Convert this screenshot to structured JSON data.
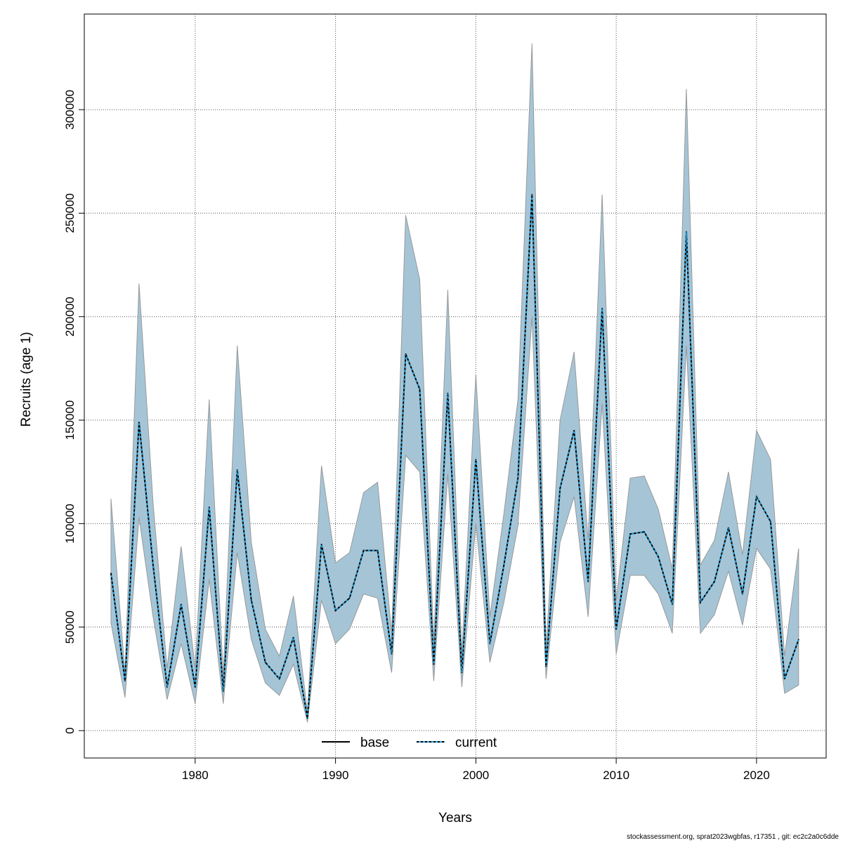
{
  "chart_data": {
    "type": "line",
    "title": "",
    "xlabel": "Years",
    "ylabel": "Recruits (age 1)",
    "xlim": [
      1972.1,
      2024.96
    ],
    "ylim": [
      -13240,
      346200
    ],
    "xticks": [
      1980,
      1990,
      2000,
      2010,
      2020
    ],
    "yticks": [
      0,
      50000,
      100000,
      150000,
      200000,
      250000,
      300000
    ],
    "grid": true,
    "legend": {
      "placement": "bottom-center",
      "entries": [
        "base",
        "current"
      ]
    },
    "x": [
      1974,
      1975,
      1976,
      1977,
      1978,
      1979,
      1980,
      1981,
      1982,
      1983,
      1984,
      1985,
      1986,
      1987,
      1988,
      1989,
      1990,
      1991,
      1992,
      1993,
      1994,
      1995,
      1996,
      1997,
      1998,
      1999,
      2000,
      2001,
      2002,
      2003,
      2004,
      2005,
      2006,
      2007,
      2008,
      2009,
      2010,
      2011,
      2012,
      2013,
      2014,
      2015,
      2016,
      2017,
      2018,
      2019,
      2020,
      2021,
      2022,
      2023
    ],
    "series": [
      {
        "name": "base",
        "color": "#000000",
        "values": [
          76000,
          24000,
          149000,
          80000,
          21000,
          61000,
          21000,
          108000,
          19000,
          126000,
          63000,
          33000,
          25000,
          45000,
          6000,
          90000,
          58000,
          64000,
          87000,
          87000,
          37000,
          182000,
          165000,
          32000,
          163000,
          28000,
          131000,
          42000,
          80000,
          122000,
          259000,
          31000,
          117000,
          145000,
          72000,
          204000,
          49000,
          95000,
          96000,
          84000,
          61000,
          241000,
          62000,
          72000,
          98000,
          66000,
          113000,
          101000,
          25000,
          44000
        ]
      },
      {
        "name": "current",
        "color": "#1f9bd7",
        "values": [
          76000,
          24000,
          149000,
          80000,
          21000,
          61000,
          21000,
          108000,
          19000,
          126000,
          63000,
          33000,
          25000,
          45000,
          6000,
          90000,
          58000,
          64000,
          87000,
          87000,
          37000,
          182000,
          165000,
          32000,
          163000,
          28000,
          131000,
          42000,
          80000,
          122000,
          259000,
          31000,
          117000,
          145000,
          72000,
          204000,
          49000,
          95000,
          96000,
          84000,
          61000,
          241000,
          62000,
          72000,
          98000,
          66000,
          113000,
          101000,
          25000,
          44000
        ]
      }
    ],
    "confidence_band": {
      "color": "#a5c5d6",
      "low": [
        52000,
        16000,
        103000,
        55000,
        15000,
        42000,
        13000,
        73000,
        13000,
        86000,
        44000,
        23000,
        17000,
        32000,
        4000,
        63000,
        42000,
        49000,
        66000,
        64000,
        28000,
        133000,
        125000,
        24000,
        124000,
        21000,
        100000,
        33000,
        62000,
        99000,
        200000,
        25000,
        91000,
        113000,
        55000,
        158000,
        37000,
        75000,
        75000,
        66000,
        47000,
        186000,
        47000,
        56000,
        77000,
        51000,
        88000,
        78000,
        18000,
        22000
      ],
      "high": [
        112000,
        28000,
        216000,
        110000,
        30000,
        89000,
        30000,
        160000,
        27000,
        186000,
        91000,
        49000,
        36000,
        65000,
        9000,
        128000,
        81000,
        86000,
        115000,
        120000,
        47000,
        249000,
        218000,
        43000,
        213000,
        37000,
        172000,
        55000,
        105000,
        160000,
        332000,
        40000,
        150000,
        183000,
        92000,
        259000,
        63000,
        122000,
        123000,
        107000,
        78000,
        310000,
        80000,
        92000,
        125000,
        85000,
        145000,
        131000,
        36000,
        88000
      ]
    }
  },
  "footer": "stockassessment.org, sprat2023wgbfas, r17351 , git: ec2c2a0c6dde"
}
